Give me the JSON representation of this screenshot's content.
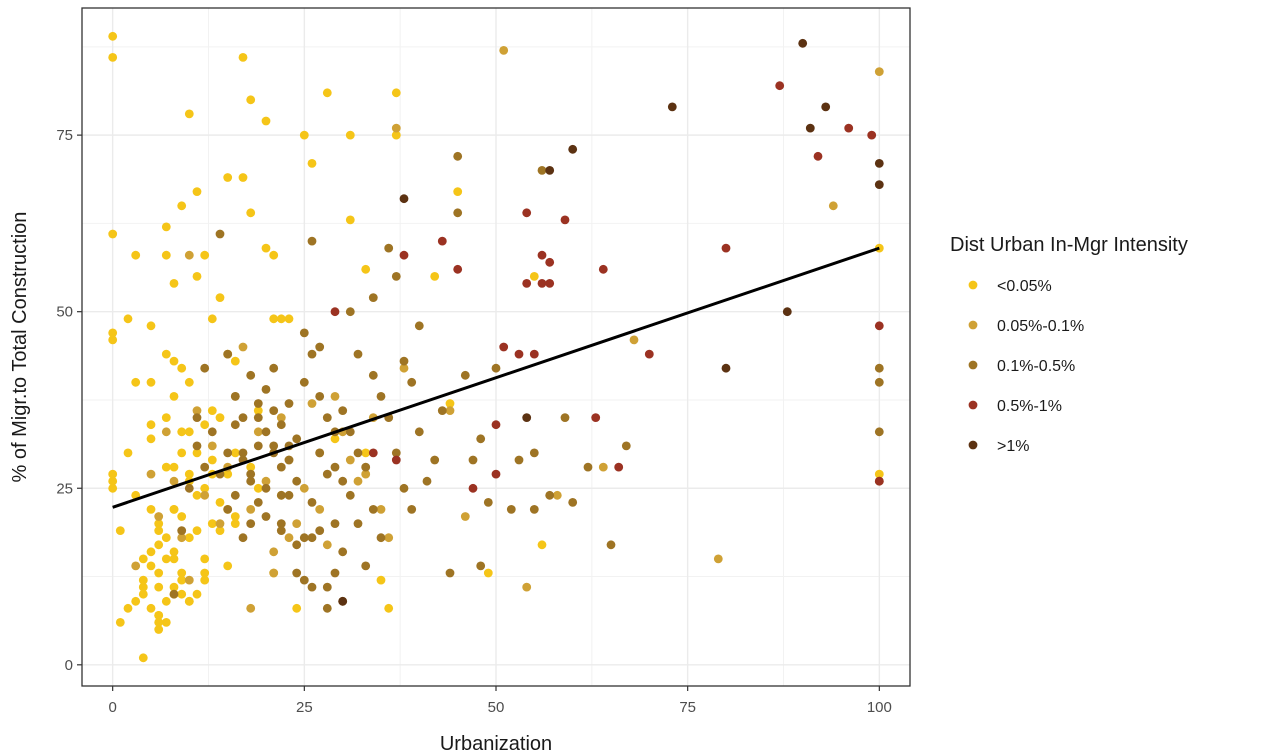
{
  "chart_data": {
    "type": "scatter",
    "title": "",
    "xlabel": "Urbanization",
    "ylabel": "% of Migr.to Total Construction",
    "xlim": [
      -4,
      104
    ],
    "ylim": [
      -3,
      93
    ],
    "x_ticks": [
      0,
      25,
      50,
      75,
      100
    ],
    "x_tick_labels": [
      "0",
      "25",
      "50",
      "75",
      "100"
    ],
    "y_ticks": [
      0,
      25,
      50,
      75
    ],
    "y_tick_labels": [
      "0",
      "25",
      "50",
      "75"
    ],
    "grid": true,
    "legend": {
      "title": "Dist Urban In-Mgr Intensity",
      "position": "right",
      "entries": [
        {
          "label": "<0.05%",
          "color": "#F5C518"
        },
        {
          "label": "0.05%-0.1%",
          "color": "#CFA135"
        },
        {
          "label": "0.1%-0.5%",
          "color": "#9E7424"
        },
        {
          "label": "0.5%-1%",
          "color": "#9B3222"
        },
        {
          "label": ">1%",
          "color": "#5C3212"
        }
      ]
    },
    "trend_line": {
      "x": [
        0,
        100
      ],
      "y": [
        22.3,
        59
      ],
      "color": "#000000"
    },
    "series": [
      {
        "group": 0,
        "x": [
          0,
          0,
          0,
          0,
          0,
          0,
          0,
          0,
          1,
          1,
          2,
          2,
          3,
          3,
          3,
          4,
          4,
          4,
          5,
          5,
          5,
          5,
          5,
          6,
          6,
          6,
          6,
          6,
          6,
          7,
          7,
          7,
          7,
          7,
          7,
          7,
          8,
          8,
          8,
          8,
          8,
          8,
          8,
          9,
          9,
          9,
          9,
          9,
          10,
          10,
          10,
          10,
          10,
          10,
          11,
          11,
          11,
          11,
          12,
          12,
          12,
          12,
          13,
          13,
          13,
          13,
          14,
          14,
          14,
          15,
          15,
          15,
          15,
          16,
          16,
          16,
          17,
          17,
          18,
          18,
          19,
          19,
          20,
          20,
          21,
          21,
          22,
          22,
          23,
          25,
          26,
          28,
          29,
          31,
          31,
          33,
          36,
          37,
          37,
          42,
          44,
          45,
          49,
          55,
          56,
          100,
          100,
          7,
          8,
          9,
          10,
          6,
          5,
          12,
          4,
          5,
          6,
          8,
          9,
          11,
          3,
          4,
          5,
          7,
          13,
          2,
          6,
          8,
          10,
          14,
          15,
          9,
          11,
          12,
          16,
          18,
          21,
          24,
          33,
          35
        ],
        "y": [
          89,
          86,
          61,
          47,
          46,
          27,
          26,
          25,
          6,
          19,
          49,
          30,
          40,
          58,
          24,
          15,
          10,
          1,
          48,
          40,
          34,
          32,
          22,
          20,
          17,
          13,
          11,
          7,
          5,
          62,
          58,
          44,
          35,
          28,
          15,
          9,
          54,
          43,
          38,
          28,
          22,
          15,
          10,
          65,
          42,
          30,
          21,
          12,
          78,
          40,
          33,
          27,
          18,
          9,
          67,
          55,
          30,
          24,
          58,
          34,
          25,
          15,
          49,
          36,
          29,
          20,
          52,
          35,
          19,
          69,
          44,
          27,
          22,
          43,
          30,
          20,
          86,
          69,
          64,
          80,
          36,
          25,
          77,
          59,
          58,
          49,
          49,
          24,
          49,
          75,
          71,
          81,
          32,
          75,
          63,
          30,
          8,
          81,
          75,
          55,
          37,
          67,
          13,
          55,
          17,
          59,
          27,
          18,
          11,
          10,
          9,
          6,
          8,
          12,
          11,
          14,
          7,
          16,
          13,
          10,
          9,
          12,
          16,
          6,
          27,
          8,
          19,
          22,
          26,
          23,
          14,
          33,
          19,
          13,
          21,
          28,
          13,
          8,
          56,
          12
        ]
      },
      {
        "group": 1,
        "x": [
          3,
          5,
          6,
          7,
          8,
          9,
          10,
          10,
          11,
          12,
          13,
          14,
          15,
          16,
          17,
          18,
          19,
          20,
          21,
          22,
          23,
          24,
          25,
          26,
          27,
          28,
          30,
          31,
          32,
          34,
          35,
          36,
          37,
          38,
          44,
          46,
          51,
          54,
          58,
          64,
          68,
          79,
          94,
          100,
          18,
          21,
          23,
          27,
          29,
          33
        ],
        "y": [
          14,
          27,
          21,
          33,
          26,
          18,
          58,
          12,
          36,
          24,
          31,
          20,
          28,
          38,
          45,
          22,
          33,
          26,
          16,
          35,
          29,
          20,
          25,
          37,
          30,
          17,
          33,
          29,
          26,
          35,
          22,
          18,
          76,
          42,
          36,
          21,
          87,
          11,
          24,
          28,
          46,
          15,
          65,
          84,
          8,
          13,
          18,
          22,
          38,
          27
        ]
      },
      {
        "group": 2,
        "x": [
          8,
          9,
          10,
          11,
          11,
          12,
          12,
          13,
          14,
          14,
          15,
          15,
          15,
          16,
          16,
          17,
          17,
          17,
          18,
          18,
          18,
          19,
          19,
          19,
          20,
          20,
          20,
          21,
          21,
          21,
          22,
          22,
          22,
          23,
          23,
          23,
          24,
          24,
          24,
          25,
          25,
          25,
          26,
          26,
          26,
          27,
          27,
          27,
          28,
          28,
          28,
          29,
          29,
          29,
          30,
          30,
          30,
          31,
          31,
          32,
          32,
          33,
          33,
          34,
          34,
          35,
          35,
          36,
          36,
          37,
          37,
          38,
          38,
          39,
          39,
          40,
          40,
          41,
          42,
          43,
          44,
          45,
          45,
          46,
          47,
          48,
          48,
          49,
          50,
          52,
          53,
          55,
          55,
          56,
          57,
          59,
          60,
          62,
          65,
          67,
          100,
          100,
          100,
          100,
          24,
          26,
          28,
          30,
          32,
          16,
          18,
          20,
          22,
          19,
          21,
          23,
          25,
          27,
          29,
          31,
          34,
          17,
          22,
          26
        ],
        "y": [
          10,
          19,
          25,
          35,
          31,
          42,
          28,
          33,
          61,
          27,
          44,
          30,
          22,
          38,
          24,
          35,
          29,
          18,
          41,
          26,
          20,
          37,
          31,
          23,
          39,
          33,
          25,
          42,
          36,
          30,
          34,
          28,
          20,
          37,
          31,
          24,
          32,
          26,
          17,
          47,
          40,
          12,
          60,
          44,
          23,
          38,
          30,
          19,
          35,
          27,
          11,
          28,
          20,
          13,
          36,
          26,
          9,
          33,
          24,
          30,
          20,
          28,
          14,
          41,
          22,
          38,
          18,
          59,
          35,
          55,
          30,
          43,
          25,
          40,
          22,
          48,
          33,
          26,
          29,
          36,
          13,
          72,
          64,
          41,
          29,
          32,
          14,
          23,
          42,
          22,
          29,
          30,
          22,
          70,
          24,
          35,
          23,
          28,
          17,
          31,
          42,
          33,
          26,
          40,
          13,
          11,
          8,
          16,
          44,
          34,
          27,
          21,
          19,
          35,
          31,
          29,
          18,
          45,
          33,
          50,
          52,
          30,
          24,
          18
        ]
      },
      {
        "group": 3,
        "x": [
          37,
          38,
          43,
          45,
          47,
          50,
          50,
          51,
          53,
          54,
          54,
          55,
          56,
          56,
          57,
          57,
          59,
          63,
          64,
          66,
          70,
          80,
          87,
          92,
          96,
          99,
          100,
          100,
          29,
          34
        ],
        "y": [
          29,
          58,
          60,
          56,
          25,
          34,
          27,
          45,
          44,
          64,
          54,
          44,
          58,
          54,
          57,
          54,
          63,
          35,
          56,
          28,
          44,
          59,
          82,
          72,
          76,
          75,
          48,
          26,
          50,
          30
        ]
      },
      {
        "group": 4,
        "x": [
          38,
          57,
          60,
          73,
          80,
          88,
          90,
          91,
          93,
          100,
          100,
          54,
          30
        ],
        "y": [
          66,
          70,
          73,
          79,
          42,
          50,
          88,
          76,
          79,
          71,
          68,
          35,
          9
        ]
      }
    ]
  }
}
